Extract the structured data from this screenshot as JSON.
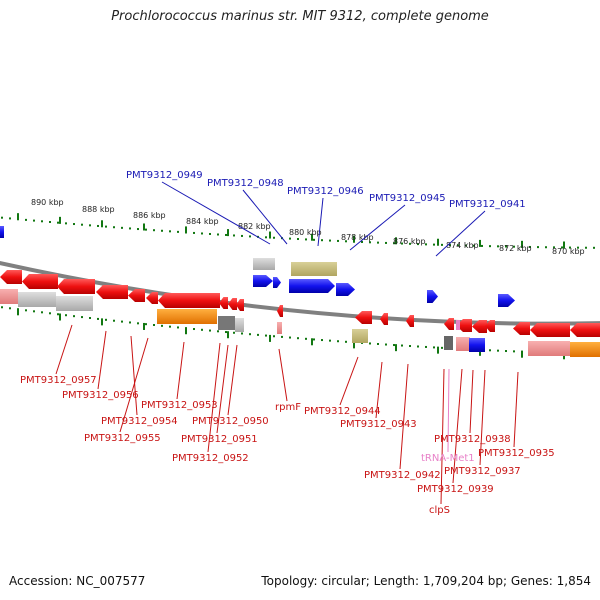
{
  "title": "Prochlorococcus marinus str. MIT 9312, complete genome",
  "footer": {
    "accession": "Accession: NC_007577",
    "summary": "Topology: circular; Length: 1,709,204 bp; Genes: 1,854"
  },
  "scale": {
    "tick_labels": [
      "890 kbp",
      "888 kbp",
      "886 kbp",
      "884 kbp",
      "882 kbp",
      "880 kbp",
      "878 kbp",
      "876 kbp",
      "874 kbp",
      "872 kbp",
      "870 kbp"
    ]
  },
  "top_labels": [
    "PMT9312_0949",
    "PMT9312_0948",
    "PMT9312_0946",
    "PMT9312_0945",
    "PMT9312_0941"
  ],
  "bottom_labels": [
    "PMT9312_0957",
    "PMT9312_0956",
    "PMT9312_0954",
    "PMT9312_0955",
    "PMT9312_0953",
    "PMT9312_0950",
    "PMT9312_0951",
    "PMT9312_0952",
    "rpmF",
    "PMT9312_0944",
    "PMT9312_0943",
    "PMT9312_0942",
    "tRNA-Met1",
    "PMT9312_0938",
    "PMT9312_0935",
    "PMT9312_0937",
    "PMT9312_0939",
    "clpS"
  ],
  "colors": {
    "forward_cds": "#1212e6",
    "reverse_cds": "#e60a0a",
    "rna": "#e880c8",
    "backbone": "#808080",
    "tick": "#117711",
    "label_blue": "#1a1ab4",
    "label_red": "#c81414"
  }
}
